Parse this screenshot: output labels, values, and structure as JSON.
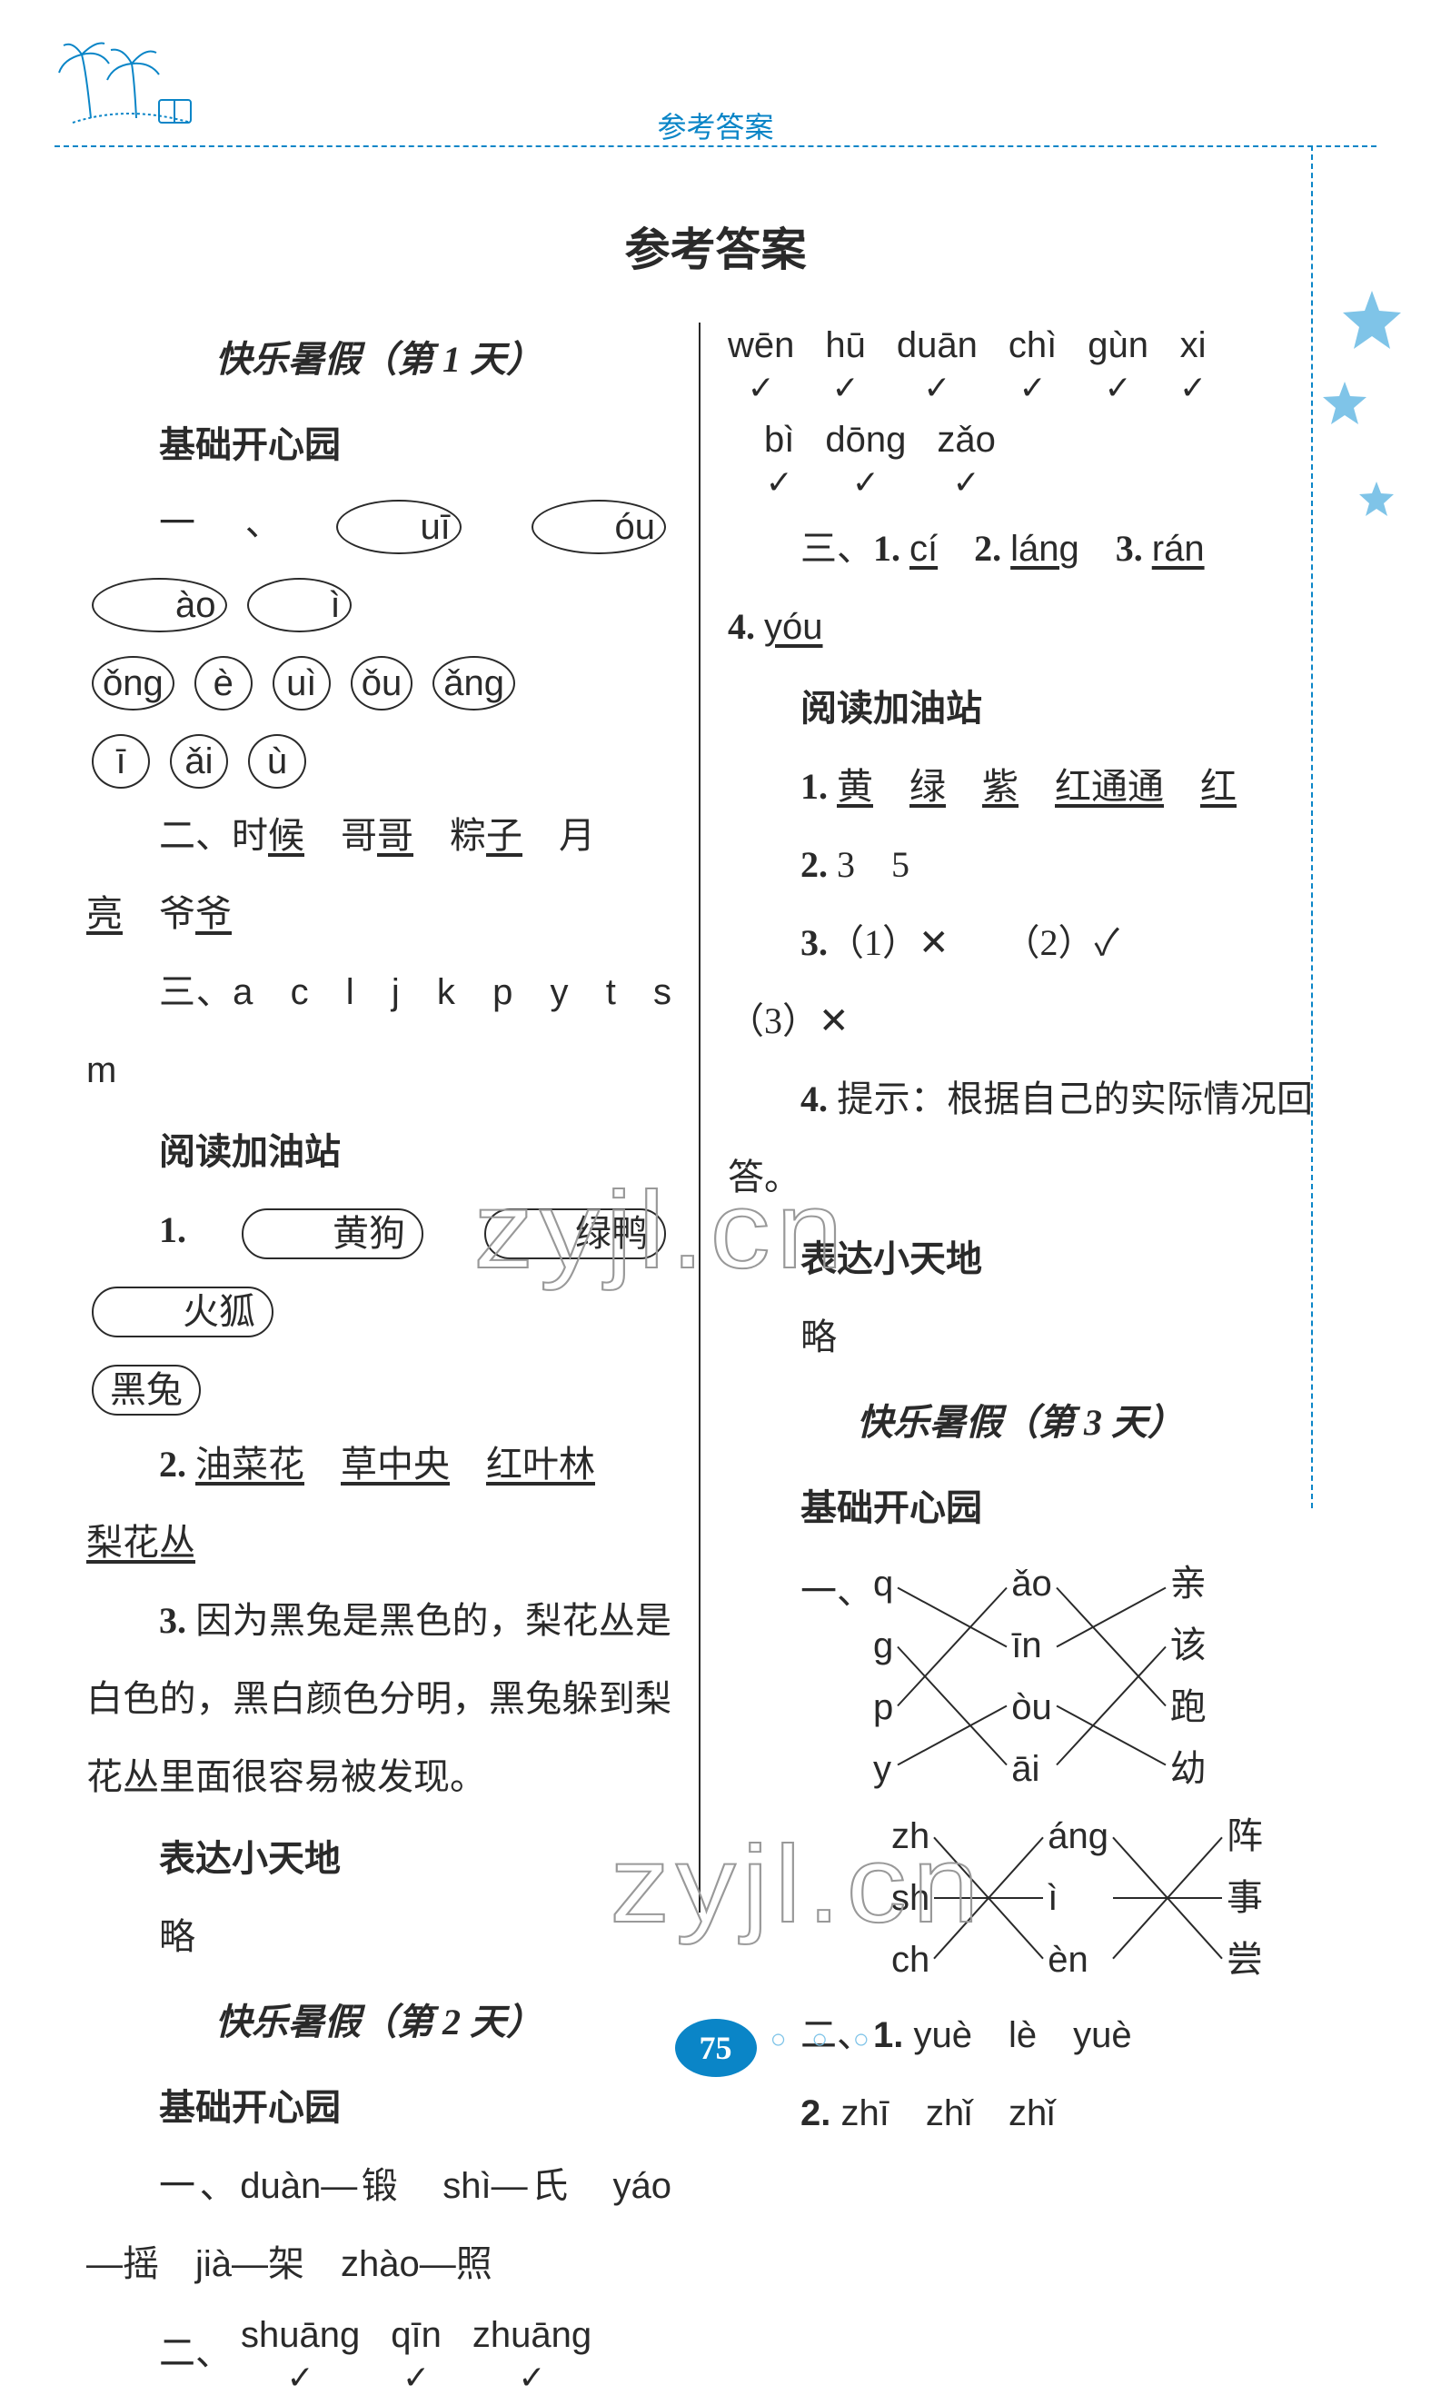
{
  "colors": {
    "accent": "#0a85c7",
    "text": "#2a2a2a",
    "background": "#ffffff",
    "star": "#7fc4e8"
  },
  "header": {
    "small_title": "参考答案",
    "main_title": "参考答案"
  },
  "day1": {
    "title": "快乐暑假（第 1 天）",
    "section1": "基础开心园",
    "s1_q1_label": "一、",
    "s1_q1_items": [
      "uī",
      "óu",
      "ào",
      "ì",
      "ǒng",
      "è",
      "uì",
      "ǒu",
      "ǎng",
      "ī",
      "ǎi",
      "ù"
    ],
    "s1_q2": "二、时",
    "s1_q2_words": [
      "候",
      "哥",
      "哥",
      "粽",
      "子",
      "月",
      "亮",
      "爷",
      "爷"
    ],
    "s1_q3": "三、a　c　l　j　k　p　y　t　s　m",
    "section2": "阅读加油站",
    "s2_q1_label": "1.",
    "s2_q1_items": [
      "黄狗",
      "绿鸭",
      "火狐",
      "黑兔"
    ],
    "s2_q2_label": "2.",
    "s2_q2_items": [
      "油菜花",
      "草中央",
      "红叶林",
      "梨花丛"
    ],
    "s2_q3": "3. 因为黑兔是黑色的，梨花丛是白色的，黑白颜色分明，黑兔躲到梨花丛里面很容易被发现。",
    "section3": "表达小天地",
    "s3_text": "略"
  },
  "day2": {
    "title": "快乐暑假（第 2 天）",
    "section1": "基础开心园",
    "s1_q1": "一、duàn—锻　shì—氏　yáo—摇　jià—架　zhào—照",
    "s1_q2_label": "二、",
    "s1_q2_pinyin_row1": [
      "shuāng",
      "qīn",
      "zhuāng",
      "wēn",
      "hū",
      "duān",
      "chì",
      "gùn",
      "xi"
    ],
    "s1_q2_pinyin_row2": [
      "bì",
      "dōng",
      "zǎo"
    ],
    "s1_q3_label": "三、",
    "s1_q3_items": [
      {
        "n": "1.",
        "v": "cí"
      },
      {
        "n": "2.",
        "v": "láng"
      },
      {
        "n": "3.",
        "v": "rán"
      },
      {
        "n": "4.",
        "v": "yóu"
      }
    ],
    "section2": "阅读加油站",
    "s2_q1_label": "1.",
    "s2_q1_items": [
      "黄",
      "绿",
      "紫",
      "红通通",
      "红"
    ],
    "s2_q2": "2. 3　5",
    "s2_q3": "3.（1）✕　（2）✓　（3）✕",
    "s2_q4": "4. 提示：根据自己的实际情况回答。",
    "section3": "表达小天地",
    "s3_text": "略"
  },
  "day3": {
    "title": "快乐暑假（第 3 天）",
    "section1": "基础开心园",
    "s1_q1_label": "一、",
    "match1": {
      "left": [
        "q",
        "g",
        "p",
        "y"
      ],
      "mid": [
        "ǎo",
        "īn",
        "òu",
        "āi"
      ],
      "right": [
        "亲",
        "该",
        "跑",
        "幼"
      ],
      "edges_lm": [
        [
          0,
          1
        ],
        [
          1,
          3
        ],
        [
          2,
          0
        ],
        [
          3,
          2
        ]
      ],
      "edges_mr": [
        [
          0,
          2
        ],
        [
          1,
          0
        ],
        [
          2,
          3
        ],
        [
          3,
          1
        ]
      ]
    },
    "match2": {
      "left": [
        "zh",
        "sh",
        "ch"
      ],
      "mid": [
        "áng",
        "ì",
        "èn"
      ],
      "right": [
        "阵",
        "事",
        "尝"
      ],
      "edges_lm": [
        [
          0,
          2
        ],
        [
          1,
          1
        ],
        [
          2,
          0
        ]
      ],
      "edges_mr": [
        [
          0,
          2
        ],
        [
          1,
          1
        ],
        [
          2,
          0
        ]
      ]
    },
    "s1_q2": "二、1. yuè　lè　yuè",
    "s1_q2b": "2. zhī　zhǐ　zhǐ"
  },
  "page_number": "75",
  "watermark": "zyjl.cn"
}
